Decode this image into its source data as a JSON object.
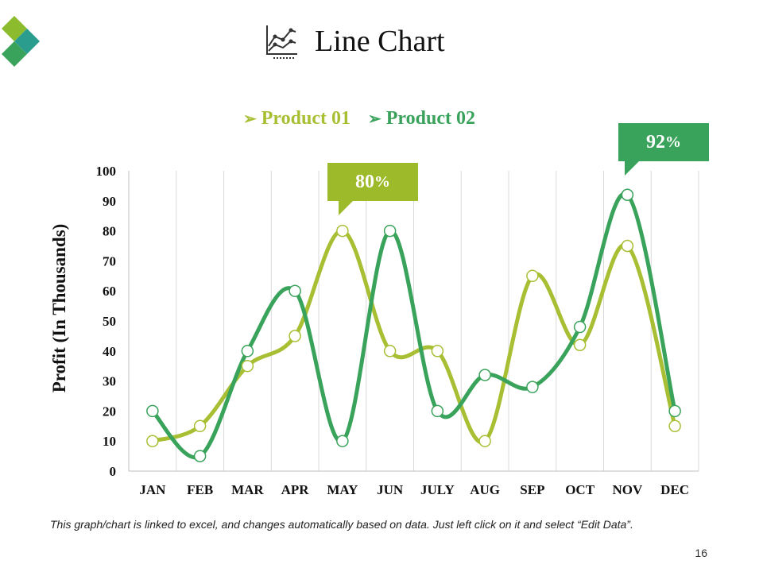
{
  "slide": {
    "title": "Line Chart",
    "footnote": "This graph/chart is linked to excel, and changes automatically based on data. Just left click on it and select “Edit Data”.",
    "page_number": "16"
  },
  "colors": {
    "product_01": "#a8bf34",
    "product_02": "#3aa35b",
    "callout_1_bg": "#9dba2b",
    "callout_2_bg": "#3aa35b",
    "logo_top": "#8cbb2e",
    "logo_right": "#2a9d8f",
    "logo_bottom": "#3aa35b"
  },
  "icons": {
    "title_icon": "line-chart-icon",
    "legend_marker": "arrowhead-bullet-icon",
    "logo": "diamond-logo-icon"
  },
  "legend": {
    "items": [
      {
        "label": "Product 01",
        "arrow": "➢"
      },
      {
        "label": "Product 02",
        "arrow": "➢"
      }
    ]
  },
  "callouts": [
    {
      "value": "80",
      "unit": "%"
    },
    {
      "value": "92",
      "unit": "%"
    }
  ],
  "chart_data": {
    "type": "line",
    "title": "Line Chart",
    "xlabel": "",
    "ylabel": "Profit (In Thousands)",
    "categories": [
      "JAN",
      "FEB",
      "MAR",
      "APR",
      "MAY",
      "JUN",
      "JULY",
      "AUG",
      "SEP",
      "OCT",
      "NOV",
      "DEC"
    ],
    "series": [
      {
        "name": "Product 01",
        "values": [
          10,
          15,
          35,
          45,
          80,
          40,
          40,
          10,
          65,
          42,
          75,
          15
        ]
      },
      {
        "name": "Product 02",
        "values": [
          20,
          5,
          40,
          60,
          10,
          80,
          20,
          32,
          28,
          48,
          92,
          20
        ]
      }
    ],
    "ylim": [
      0,
      100
    ],
    "yticks": [
      0,
      10,
      20,
      30,
      40,
      50,
      60,
      70,
      80,
      90,
      100
    ],
    "grid": "vertical",
    "legend_position": "top",
    "smooth": true
  }
}
